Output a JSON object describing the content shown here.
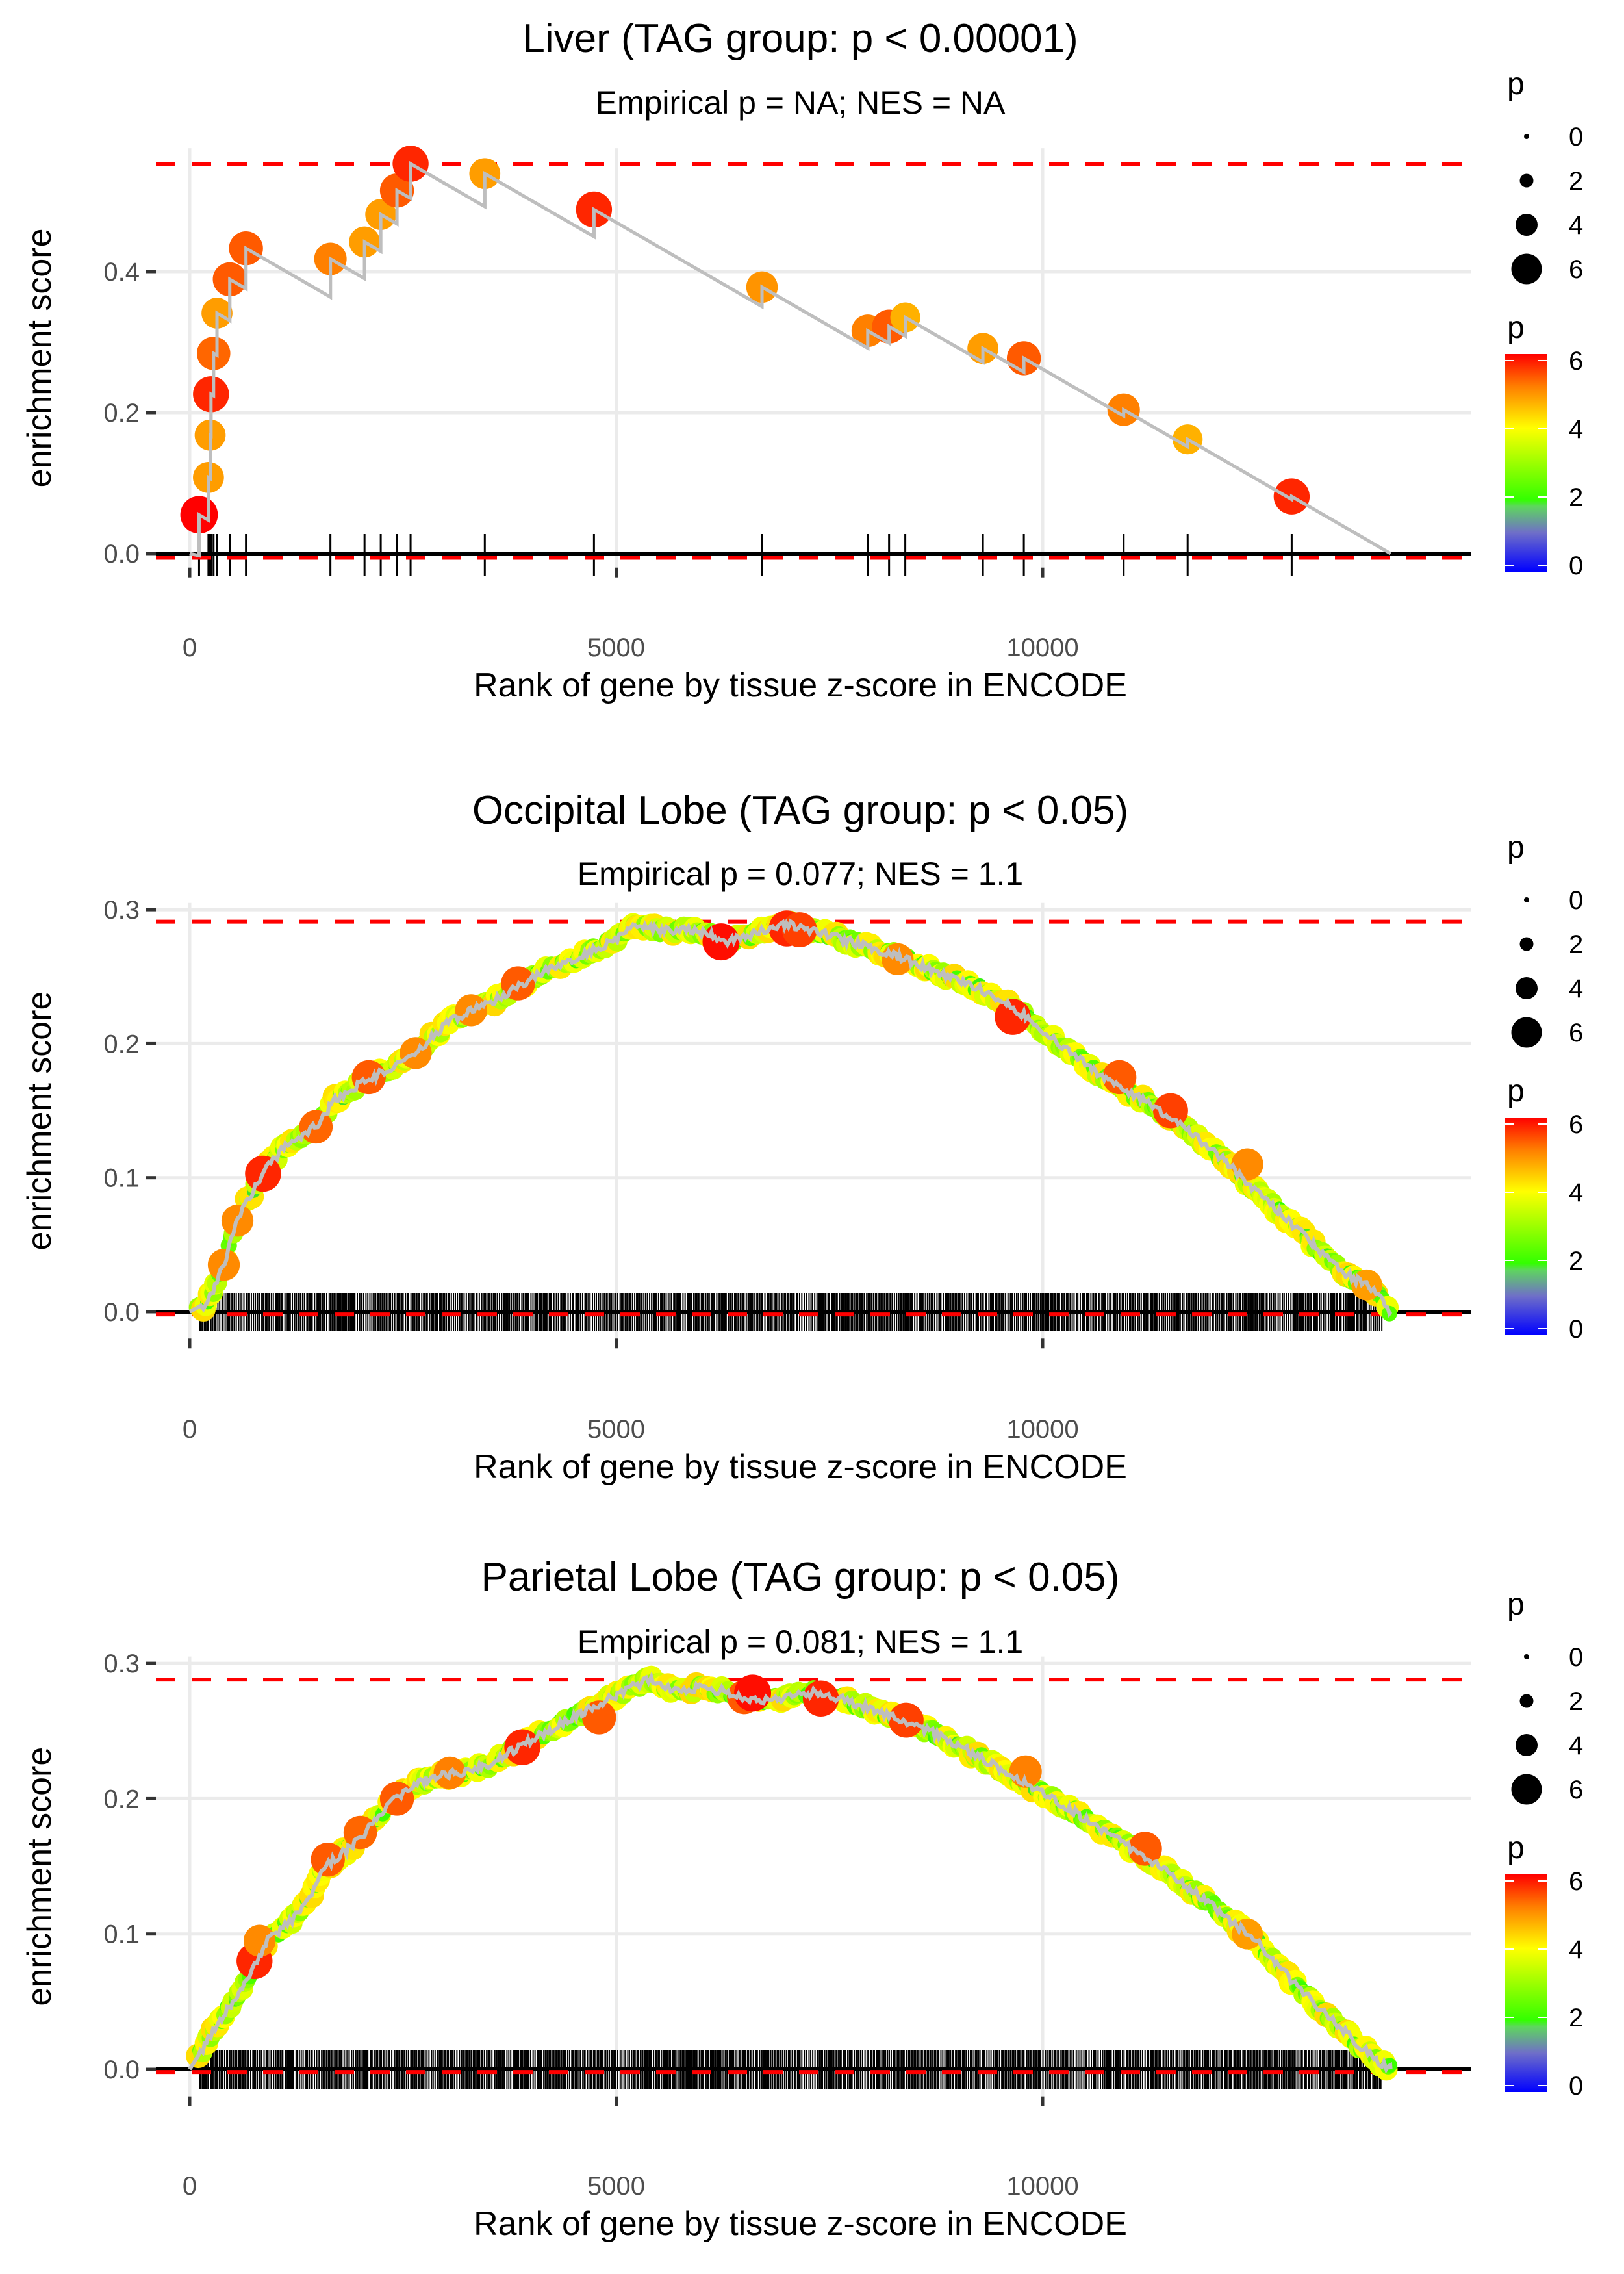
{
  "chart_data": [
    {
      "type": "scatter",
      "title": "Liver (TAG group: p < 0.00001)",
      "subtitle": "Empirical p = NA; NES = NA",
      "xlabel": "Rank of gene by tissue z-score in ENCODE",
      "ylabel": "enrichment score",
      "xlim": [
        -700,
        14600
      ],
      "ylim": [
        -0.02,
        0.575
      ],
      "xticks": [
        0,
        5000,
        10000
      ],
      "xtick_labels": [
        "0",
        "5000",
        "10000"
      ],
      "yticks": [
        0.0,
        0.2,
        0.4
      ],
      "ytick_labels": [
        "0.0",
        "0.2",
        "0.4"
      ],
      "max_es_line": 0.553,
      "min_es_line": -0.006,
      "end_rank": 14080,
      "grid": true,
      "points": [
        {
          "x": 110,
          "y": 0.055,
          "p": 6.3
        },
        {
          "x": 220,
          "y": 0.108,
          "p": 5.0
        },
        {
          "x": 240,
          "y": 0.168,
          "p": 5.0
        },
        {
          "x": 250,
          "y": 0.226,
          "p": 6.0
        },
        {
          "x": 280,
          "y": 0.284,
          "p": 5.5
        },
        {
          "x": 320,
          "y": 0.341,
          "p": 5.0
        },
        {
          "x": 470,
          "y": 0.389,
          "p": 5.6
        },
        {
          "x": 660,
          "y": 0.433,
          "p": 5.6
        },
        {
          "x": 1650,
          "y": 0.418,
          "p": 5.3
        },
        {
          "x": 2050,
          "y": 0.442,
          "p": 5.0
        },
        {
          "x": 2240,
          "y": 0.481,
          "p": 5.0
        },
        {
          "x": 2430,
          "y": 0.515,
          "p": 5.6
        },
        {
          "x": 2590,
          "y": 0.553,
          "p": 6.0
        },
        {
          "x": 3460,
          "y": 0.539,
          "p": 5.0
        },
        {
          "x": 4740,
          "y": 0.488,
          "p": 6.0
        },
        {
          "x": 6710,
          "y": 0.378,
          "p": 5.1
        },
        {
          "x": 7950,
          "y": 0.316,
          "p": 5.3
        },
        {
          "x": 8200,
          "y": 0.322,
          "p": 5.6
        },
        {
          "x": 8390,
          "y": 0.335,
          "p": 4.8
        },
        {
          "x": 9300,
          "y": 0.291,
          "p": 5.0
        },
        {
          "x": 9780,
          "y": 0.277,
          "p": 5.6
        },
        {
          "x": 10950,
          "y": 0.204,
          "p": 5.3
        },
        {
          "x": 11700,
          "y": 0.162,
          "p": 4.8
        },
        {
          "x": 12920,
          "y": 0.081,
          "p": 6.0
        }
      ]
    },
    {
      "type": "scatter",
      "title": "Occipital Lobe (TAG group: p < 0.05)",
      "subtitle": "Empirical p = 0.077; NES = 1.1",
      "xlabel": "Rank of gene by tissue z-score in ENCODE",
      "ylabel": "enrichment score",
      "xlim": [
        -700,
        14600
      ],
      "ylim": [
        -0.02,
        0.305
      ],
      "xticks": [
        0,
        5000,
        10000
      ],
      "xtick_labels": [
        "0",
        "5000",
        "10000"
      ],
      "yticks": [
        0.0,
        0.1,
        0.2,
        0.3
      ],
      "ytick_labels": [
        "0.0",
        "0.1",
        "0.2",
        "0.3"
      ],
      "max_es_line": 0.291,
      "min_es_line": -0.002,
      "end_rank": 14080,
      "grid": true,
      "curve": [
        [
          0,
          0.0
        ],
        [
          200,
          0.005
        ],
        [
          400,
          0.035
        ],
        [
          550,
          0.068
        ],
        [
          850,
          0.103
        ],
        [
          1100,
          0.122
        ],
        [
          1500,
          0.14
        ],
        [
          1700,
          0.158
        ],
        [
          2000,
          0.17
        ],
        [
          2400,
          0.183
        ],
        [
          2700,
          0.195
        ],
        [
          3000,
          0.215
        ],
        [
          3300,
          0.225
        ],
        [
          3600,
          0.233
        ],
        [
          3900,
          0.245
        ],
        [
          4200,
          0.255
        ],
        [
          4600,
          0.265
        ],
        [
          5000,
          0.278
        ],
        [
          5250,
          0.29
        ],
        [
          5500,
          0.284
        ],
        [
          5800,
          0.286
        ],
        [
          6100,
          0.282
        ],
        [
          6300,
          0.276
        ],
        [
          6600,
          0.282
        ],
        [
          7000,
          0.289
        ],
        [
          7400,
          0.283
        ],
        [
          7800,
          0.275
        ],
        [
          8300,
          0.265
        ],
        [
          8800,
          0.252
        ],
        [
          9300,
          0.24
        ],
        [
          9700,
          0.225
        ],
        [
          10100,
          0.205
        ],
        [
          10600,
          0.18
        ],
        [
          11000,
          0.165
        ],
        [
          11500,
          0.145
        ],
        [
          12000,
          0.12
        ],
        [
          12600,
          0.085
        ],
        [
          13100,
          0.055
        ],
        [
          13500,
          0.03
        ],
        [
          13850,
          0.018
        ],
        [
          14080,
          0.0
        ]
      ],
      "highlight_points": [
        {
          "x": 400,
          "y": 0.035,
          "p": 5.2
        },
        {
          "x": 560,
          "y": 0.068,
          "p": 5.2
        },
        {
          "x": 860,
          "y": 0.103,
          "p": 6.0
        },
        {
          "x": 1480,
          "y": 0.138,
          "p": 5.5
        },
        {
          "x": 2100,
          "y": 0.175,
          "p": 5.6
        },
        {
          "x": 2650,
          "y": 0.193,
          "p": 5.2
        },
        {
          "x": 3300,
          "y": 0.225,
          "p": 5.2
        },
        {
          "x": 3850,
          "y": 0.245,
          "p": 5.6
        },
        {
          "x": 6230,
          "y": 0.276,
          "p": 6.2
        },
        {
          "x": 7000,
          "y": 0.286,
          "p": 6.0
        },
        {
          "x": 7150,
          "y": 0.285,
          "p": 5.8
        },
        {
          "x": 8300,
          "y": 0.263,
          "p": 5.2
        },
        {
          "x": 9650,
          "y": 0.22,
          "p": 6.0
        },
        {
          "x": 10900,
          "y": 0.175,
          "p": 5.6
        },
        {
          "x": 11500,
          "y": 0.15,
          "p": 5.8
        },
        {
          "x": 12400,
          "y": 0.11,
          "p": 5.2
        },
        {
          "x": 13800,
          "y": 0.02,
          "p": 5.0
        }
      ]
    },
    {
      "type": "scatter",
      "title": "Parietal Lobe (TAG group: p < 0.05)",
      "subtitle": "Empirical p = 0.081; NES = 1.1",
      "xlabel": "Rank of gene by tissue z-score in ENCODE",
      "ylabel": "enrichment score",
      "xlim": [
        -700,
        14600
      ],
      "ylim": [
        -0.02,
        0.305
      ],
      "xticks": [
        0,
        5000,
        10000
      ],
      "xtick_labels": [
        "0",
        "5000",
        "10000"
      ],
      "yticks": [
        0.0,
        0.1,
        0.2,
        0.3
      ],
      "ytick_labels": [
        "0.0",
        "0.1",
        "0.2",
        "0.3"
      ],
      "max_es_line": 0.288,
      "min_es_line": -0.002,
      "end_rank": 14080,
      "grid": true,
      "curve": [
        [
          0,
          0.0
        ],
        [
          150,
          0.015
        ],
        [
          400,
          0.04
        ],
        [
          600,
          0.06
        ],
        [
          800,
          0.08
        ],
        [
          900,
          0.095
        ],
        [
          1200,
          0.11
        ],
        [
          1400,
          0.128
        ],
        [
          1600,
          0.15
        ],
        [
          1900,
          0.165
        ],
        [
          2100,
          0.178
        ],
        [
          2400,
          0.2
        ],
        [
          2700,
          0.212
        ],
        [
          3000,
          0.218
        ],
        [
          3300,
          0.22
        ],
        [
          3600,
          0.228
        ],
        [
          3900,
          0.24
        ],
        [
          4200,
          0.25
        ],
        [
          4500,
          0.26
        ],
        [
          4800,
          0.27
        ],
        [
          5100,
          0.28
        ],
        [
          5400,
          0.288
        ],
        [
          5700,
          0.28
        ],
        [
          6000,
          0.282
        ],
        [
          6300,
          0.279
        ],
        [
          6600,
          0.272
        ],
        [
          7000,
          0.275
        ],
        [
          7400,
          0.279
        ],
        [
          7800,
          0.27
        ],
        [
          8200,
          0.262
        ],
        [
          8600,
          0.252
        ],
        [
          9000,
          0.24
        ],
        [
          9500,
          0.222
        ],
        [
          10000,
          0.205
        ],
        [
          10500,
          0.185
        ],
        [
          11000,
          0.165
        ],
        [
          11500,
          0.145
        ],
        [
          12000,
          0.12
        ],
        [
          12500,
          0.095
        ],
        [
          13000,
          0.06
        ],
        [
          13500,
          0.03
        ],
        [
          13850,
          0.01
        ],
        [
          14080,
          0.0
        ]
      ],
      "highlight_points": [
        {
          "x": 760,
          "y": 0.08,
          "p": 6.0
        },
        {
          "x": 820,
          "y": 0.095,
          "p": 5.2
        },
        {
          "x": 1620,
          "y": 0.155,
          "p": 5.6
        },
        {
          "x": 2000,
          "y": 0.175,
          "p": 5.5
        },
        {
          "x": 2430,
          "y": 0.2,
          "p": 5.6
        },
        {
          "x": 3050,
          "y": 0.219,
          "p": 5.3
        },
        {
          "x": 3900,
          "y": 0.238,
          "p": 6.0
        },
        {
          "x": 4800,
          "y": 0.26,
          "p": 5.6
        },
        {
          "x": 6500,
          "y": 0.275,
          "p": 5.6
        },
        {
          "x": 6600,
          "y": 0.278,
          "p": 6.2
        },
        {
          "x": 7400,
          "y": 0.274,
          "p": 6.0
        },
        {
          "x": 8400,
          "y": 0.258,
          "p": 5.8
        },
        {
          "x": 9800,
          "y": 0.22,
          "p": 5.3
        },
        {
          "x": 11200,
          "y": 0.163,
          "p": 5.6
        },
        {
          "x": 12400,
          "y": 0.1,
          "p": 5.0
        }
      ]
    }
  ],
  "legend": {
    "size_title": "p",
    "size_labels": [
      "0",
      "2",
      "4",
      "6"
    ],
    "color_title": "p",
    "color_labels": [
      "6",
      "4",
      "2",
      "0"
    ],
    "color_stops": [
      "#0000ff",
      "#808080",
      "#33ff00",
      "#ffff00",
      "#ff8000",
      "#ff0000"
    ]
  }
}
